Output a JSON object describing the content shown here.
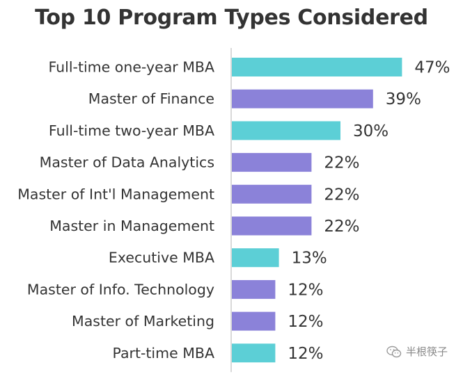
{
  "chart_data": {
    "type": "bar",
    "orientation": "horizontal",
    "title": "Top 10 Program Types Considered",
    "xlabel": "",
    "ylabel": "",
    "xlim": [
      0,
      50
    ],
    "grid": false,
    "legend": "none",
    "value_suffix": "%",
    "categories": [
      "Full-time one-year MBA",
      "Master of Finance",
      "Full-time two-year MBA",
      "Master of Data Analytics",
      "Master of Int'l Management",
      "Master in Management",
      "Executive MBA",
      "Master of Info. Technology",
      "Master of Marketing",
      "Part-time MBA"
    ],
    "values": [
      47,
      39,
      30,
      22,
      22,
      22,
      13,
      12,
      12,
      12
    ],
    "value_labels": [
      "47%",
      "39%",
      "30%",
      "22%",
      "22%",
      "22%",
      "13%",
      "12%",
      "12%",
      "12%"
    ],
    "bar_colors": [
      "#5ccfd6",
      "#8b82d9",
      "#5ccfd6",
      "#8b82d9",
      "#8b82d9",
      "#8b82d9",
      "#5ccfd6",
      "#8b82d9",
      "#8b82d9",
      "#5ccfd6"
    ],
    "axis_color": "#d9d9d9",
    "label_color": "#333333"
  },
  "watermark": {
    "icon": "wechat-icon",
    "text": "半根筷子"
  }
}
